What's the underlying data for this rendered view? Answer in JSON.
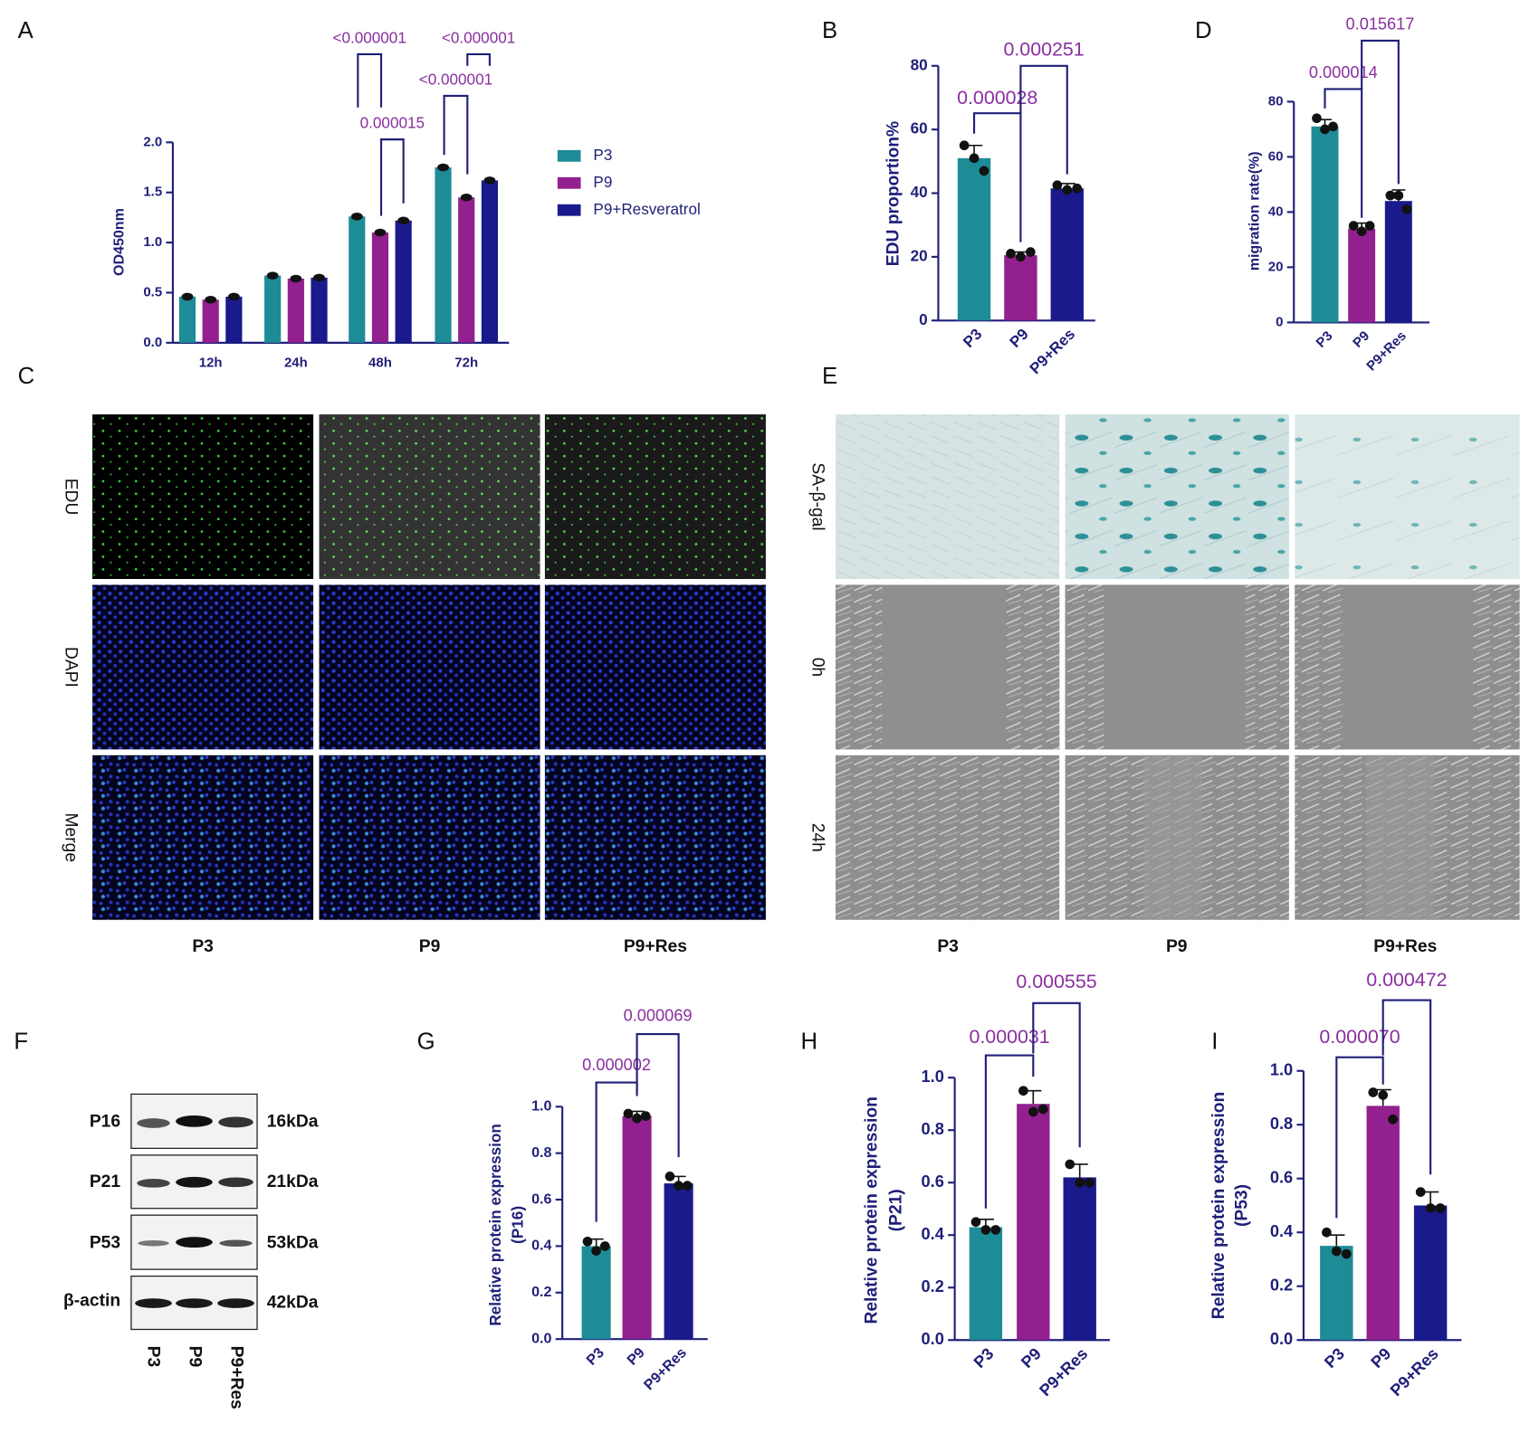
{
  "chart_data": [
    {
      "panel": "A",
      "type": "bar",
      "categories": [
        "12h",
        "24h",
        "48h",
        "72h"
      ],
      "series": [
        {
          "name": "P3",
          "color": "#1e8c96",
          "values": [
            0.46,
            0.67,
            1.26,
            1.75
          ]
        },
        {
          "name": "P9",
          "color": "#93208f",
          "values": [
            0.43,
            0.64,
            1.1,
            1.45
          ]
        },
        {
          "name": "P9+Resveratrol",
          "color": "#1a1a8c",
          "values": [
            0.46,
            0.65,
            1.22,
            1.62
          ]
        }
      ],
      "ylim": [
        0,
        2
      ],
      "yticks": [
        {
          "value": 0,
          "label": "0.0"
        },
        0.5,
        {
          "value": 1,
          "label": "1.0"
        },
        1.5,
        {
          "value": 2,
          "label": "2.0"
        }
      ],
      "ylabel": "OD450nm",
      "legend": "right",
      "annotations": [
        "<0.000001",
        "<0.000001",
        "<0.000001",
        "0.000015"
      ]
    },
    {
      "panel": "B",
      "type": "bar",
      "categories": [
        "P3",
        "P9",
        "P9+Res"
      ],
      "colors": [
        "#1e8c96",
        "#93208f",
        "#1a1a8c"
      ],
      "values": [
        51,
        20.5,
        41.5
      ],
      "errors": [
        4,
        1,
        1.5
      ],
      "points": [
        [
          55,
          51,
          47
        ],
        [
          21,
          20,
          21.5
        ],
        [
          42.5,
          41,
          41.5
        ]
      ],
      "ylim": [
        0,
        80
      ],
      "yticks": [
        0,
        20,
        40,
        60,
        80
      ],
      "ylabel": "EDU proportion%",
      "annotations": [
        "0.000028",
        "0.000251"
      ]
    },
    {
      "panel": "D",
      "type": "bar",
      "categories": [
        "P3",
        "P9",
        "P9+Res"
      ],
      "colors": [
        "#1e8c96",
        "#93208f",
        "#1a1a8c"
      ],
      "values": [
        71,
        34,
        44
      ],
      "errors": [
        2.5,
        2,
        4
      ],
      "points": [
        [
          74,
          70,
          71
        ],
        [
          35,
          33,
          35
        ],
        [
          46,
          46,
          41
        ]
      ],
      "ylim": [
        0,
        80
      ],
      "yticks": [
        0,
        20,
        40,
        60,
        80
      ],
      "ylabel": "migration rate(%)",
      "annotations": [
        "0.000014",
        "0.015617"
      ]
    },
    {
      "panel": "G",
      "type": "bar",
      "categories": [
        "P3",
        "P9",
        "P9+Res"
      ],
      "colors": [
        "#1e8c96",
        "#93208f",
        "#1a1a8c"
      ],
      "values": [
        0.4,
        0.96,
        0.67
      ],
      "errors": [
        0.03,
        0.02,
        0.03
      ],
      "points": [
        [
          0.42,
          0.38,
          0.4
        ],
        [
          0.97,
          0.95,
          0.96
        ],
        [
          0.7,
          0.66,
          0.66
        ]
      ],
      "ylim": [
        0,
        1
      ],
      "yticks": [
        {
          "value": 0,
          "label": "0.0"
        },
        0.2,
        0.4,
        0.6,
        0.8,
        {
          "value": 1,
          "label": "1.0"
        }
      ],
      "ylabel": [
        "Relative protein expression",
        "(P16)"
      ],
      "annotations": [
        "0.000002",
        "0.000069"
      ]
    },
    {
      "panel": "H",
      "type": "bar",
      "categories": [
        "P3",
        "P9",
        "P9+Res"
      ],
      "colors": [
        "#1e8c96",
        "#93208f",
        "#1a1a8c"
      ],
      "values": [
        0.43,
        0.9,
        0.62
      ],
      "errors": [
        0.03,
        0.05,
        0.05
      ],
      "points": [
        [
          0.45,
          0.42,
          0.42
        ],
        [
          0.95,
          0.87,
          0.88
        ],
        [
          0.67,
          0.6,
          0.6
        ]
      ],
      "ylim": [
        0,
        1
      ],
      "yticks": [
        {
          "value": 0,
          "label": "0.0"
        },
        0.2,
        0.4,
        0.6,
        0.8,
        {
          "value": 1,
          "label": "1.0"
        }
      ],
      "ylabel": [
        "Relative protein expression",
        "(P21)"
      ],
      "annotations": [
        "0.000031",
        "0.000555"
      ]
    },
    {
      "panel": "I",
      "type": "bar",
      "categories": [
        "P3",
        "P9",
        "P9+Res"
      ],
      "colors": [
        "#1e8c96",
        "#93208f",
        "#1a1a8c"
      ],
      "values": [
        0.35,
        0.87,
        0.5
      ],
      "errors": [
        0.04,
        0.06,
        0.05
      ],
      "points": [
        [
          0.4,
          0.33,
          0.32
        ],
        [
          0.92,
          0.91,
          0.82
        ],
        [
          0.55,
          0.49,
          0.49
        ]
      ],
      "ylim": [
        0,
        1
      ],
      "yticks": [
        {
          "value": 0,
          "label": "0.0"
        },
        0.2,
        0.4,
        0.6,
        0.8,
        {
          "value": 1,
          "label": "1.0"
        }
      ],
      "ylabel": [
        "Relative protein expression",
        "(P53)"
      ],
      "annotations": [
        "0.000070",
        "0.000472"
      ]
    }
  ],
  "images": [
    {
      "panel": "C",
      "rows": [
        "EDU",
        "DAPI",
        "Merge"
      ],
      "columns": [
        "P3",
        "P9",
        "P9+Res"
      ]
    },
    {
      "panel": "E",
      "rows": [
        "SA-β-gal",
        "0h",
        "24h"
      ],
      "columns": [
        "P3",
        "P9",
        "P9+Res"
      ]
    }
  ],
  "blot": {
    "panel": "F",
    "proteins": [
      "P16",
      "P21",
      "P53",
      "β-actin"
    ],
    "sizes": [
      "16kDa",
      "21kDa",
      "53kDa",
      "42kDa"
    ],
    "lanes": [
      "P3",
      "P9",
      "P9+Res"
    ]
  }
}
